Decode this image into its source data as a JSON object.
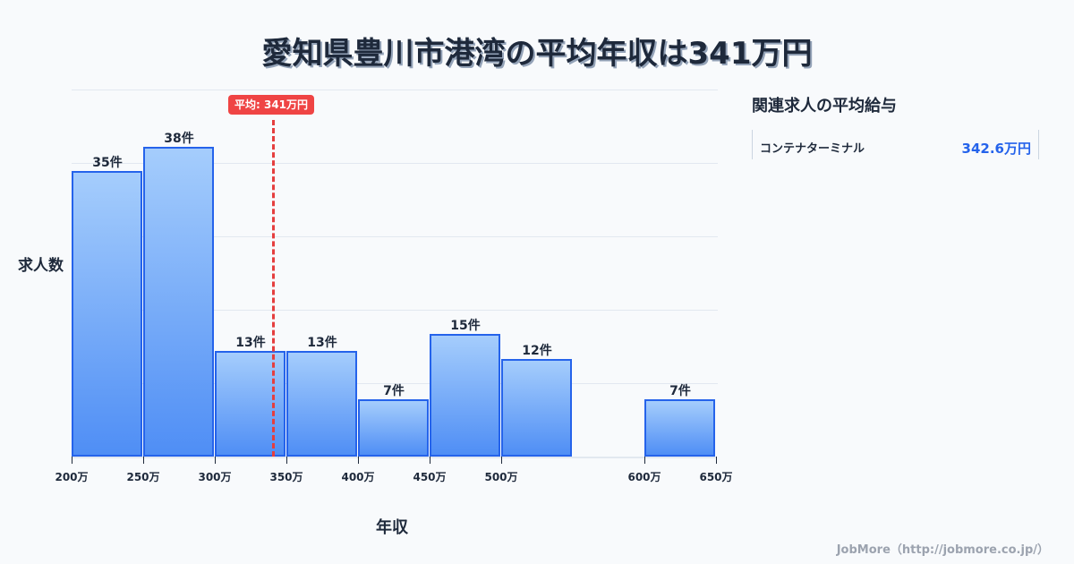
{
  "title": "愛知県豊川市港湾の平均年収は341万円",
  "mean_badge": "平均: 341万円",
  "y_label": "求人数",
  "x_label": "年収",
  "side": {
    "title": "関連求人の平均給与",
    "items": [
      {
        "name": "コンテナターミナル",
        "value": "342.6万円"
      }
    ]
  },
  "footer": "JobMore（http://jobmore.co.jp/）",
  "colors": {
    "bar_fill_top": "#a5cdfc",
    "bar_fill_bottom": "#4f8ef5",
    "bar_border": "#2563eb",
    "mean_line": "#ef4444",
    "accent_value": "#2563eb"
  },
  "chart_data": {
    "type": "bar",
    "title": "愛知県豊川市港湾の平均年収は341万円",
    "xlabel": "年収",
    "ylabel": "求人数",
    "categories": [
      "200万-250万",
      "250万-300万",
      "300万-350万",
      "350万-400万",
      "400万-450万",
      "450万-500万",
      "500万-550万",
      "550万-600万",
      "600万-650万"
    ],
    "values": [
      35,
      38,
      13,
      13,
      7,
      15,
      12,
      0,
      7
    ],
    "value_labels": [
      "35件",
      "38件",
      "13件",
      "13件",
      "7件",
      "15件",
      "12件",
      "",
      "7件"
    ],
    "x_tick_labels": [
      "200万",
      "250万",
      "300万",
      "350万",
      "400万",
      "450万",
      "500万",
      "600万",
      "650万"
    ],
    "mean": 341,
    "mean_label": "平均: 341万円",
    "ylim": [
      0,
      45
    ],
    "grid": true
  }
}
